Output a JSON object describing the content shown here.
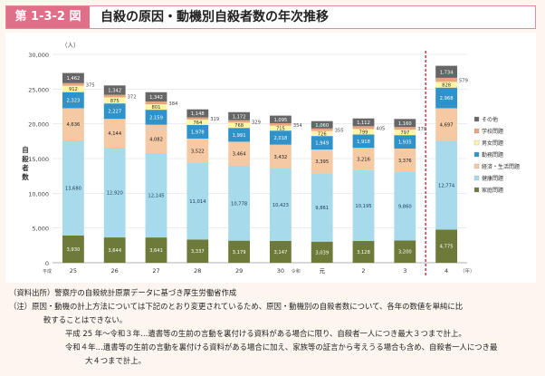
{
  "header": {
    "figure_label": "第 1-3-2 図",
    "title": "自殺の原因・動機別自殺者数の年次推移"
  },
  "chart_data": {
    "type": "bar",
    "stacked": true,
    "title": "自殺の原因・動機別自殺者数の年次推移",
    "ylabel": "自殺者数",
    "yunit": "（人）",
    "xunit": "（年）",
    "ylim": [
      0,
      30000
    ],
    "yticks": [
      "0",
      "5,000",
      "10,000",
      "15,000",
      "20,000",
      "25,000",
      "30,000"
    ],
    "yticks_values": [
      0,
      5000,
      10000,
      15000,
      20000,
      25000,
      30000
    ],
    "categories": [
      "25",
      "26",
      "27",
      "28",
      "29",
      "30",
      "元",
      "2",
      "3",
      "4"
    ],
    "era_markers": [
      {
        "text": "平成",
        "at": 0
      },
      {
        "text": "令和",
        "at": 6
      }
    ],
    "series": [
      {
        "name": "家庭問題",
        "color": "#6d7a3a",
        "text_color": "#ffffff",
        "values": [
          3930,
          3644,
          3641,
          3337,
          3179,
          3147,
          3039,
          3128,
          3200,
          4775
        ],
        "labels": [
          "3,930",
          "3,644",
          "3,641",
          "3,337",
          "3,179",
          "3,147",
          "3,039",
          "3,128",
          "3,200",
          "4,775"
        ]
      },
      {
        "name": "健康問題",
        "color": "#a7dbeb",
        "text_color": "#1a3a5a",
        "values": [
          13680,
          12920,
          12145,
          11014,
          10778,
          10423,
          9861,
          10195,
          9860,
          12774
        ],
        "labels": [
          "13,680",
          "12,920",
          "12,145",
          "11,014",
          "10,778",
          "10,423",
          "9,861",
          "10,195",
          "9,860",
          "12,774"
        ]
      },
      {
        "name": "経済・生活問題",
        "color": "#f4c9a3",
        "text_color": "#222222",
        "values": [
          4636,
          4144,
          4082,
          3522,
          3464,
          3432,
          3395,
          3216,
          3376,
          4697
        ],
        "labels": [
          "4,636",
          "4,144",
          "4,082",
          "3,522",
          "3,464",
          "3,432",
          "3,395",
          "3,216",
          "3,376",
          "4,697"
        ]
      },
      {
        "name": "勤務問題",
        "color": "#2f93c9",
        "text_color": "#ffffff",
        "values": [
          2323,
          2227,
          2159,
          1978,
          1991,
          2018,
          1949,
          1918,
          1935,
          2968
        ],
        "labels": [
          "2,323",
          "2,227",
          "2,159",
          "1,978",
          "1,991",
          "2,018",
          "1,949",
          "1,918",
          "1,935",
          "2,968"
        ]
      },
      {
        "name": "男女問題",
        "color": "#fcf6a6",
        "text_color": "#333333",
        "values": [
          912,
          875,
          801,
          764,
          768,
          715,
          726,
          799,
          797,
          828
        ],
        "labels": [
          "912",
          "875",
          "801",
          "764",
          "768",
          "715",
          "726",
          "799",
          "797",
          "828"
        ]
      },
      {
        "name": "学校問題",
        "color": "#e8a37f",
        "text_color": "#333333",
        "values": [
          375,
          372,
          384,
          319,
          329,
          354,
          355,
          405,
          370,
          579
        ],
        "labels": [
          "375",
          "372",
          "384",
          "319",
          "329",
          "354",
          "355",
          "405",
          "370",
          "579"
        ],
        "label_outside": true
      },
      {
        "name": "その他",
        "color": "#666666",
        "text_color": "#ffffff",
        "values": [
          1462,
          1342,
          1342,
          1148,
          1172,
          1095,
          1060,
          1112,
          1160,
          1734
        ],
        "labels": [
          "1,462",
          "1,342",
          "1,342",
          "1,148",
          "1,172",
          "1,095",
          "1,060",
          "1,112",
          "1,160",
          "1,734"
        ]
      }
    ],
    "legend_order": [
      "その他",
      "学校問題",
      "男女問題",
      "勤務問題",
      "経済・生活問題",
      "健康問題",
      "家庭問題"
    ],
    "legend_position": "right",
    "divider_before_category": "4",
    "divider_color": "#d03040"
  },
  "notes": {
    "source": "（資料出所）警察庁の自殺統計原票データに基づき厚生労働省作成",
    "note_1": "（注）原因・動機の計上方法については下記のとおり変更されているため、原因・動機別の自殺者数について、各年の数値を単純に比",
    "note_1_cont": "較することはできない。",
    "note_2": "平成 25 年〜令和３年…遺書等の生前の言動を裏付ける資料がある場合に限り、自殺者一人につき最大３つまで計上。",
    "note_3": "令和４年…遺書等の生前の言動を裏付ける資料がある場合に加え、家族等の証言から考えうる場合も含め、自殺者一人につき最",
    "note_3_cont": "大４つまで計上。"
  }
}
